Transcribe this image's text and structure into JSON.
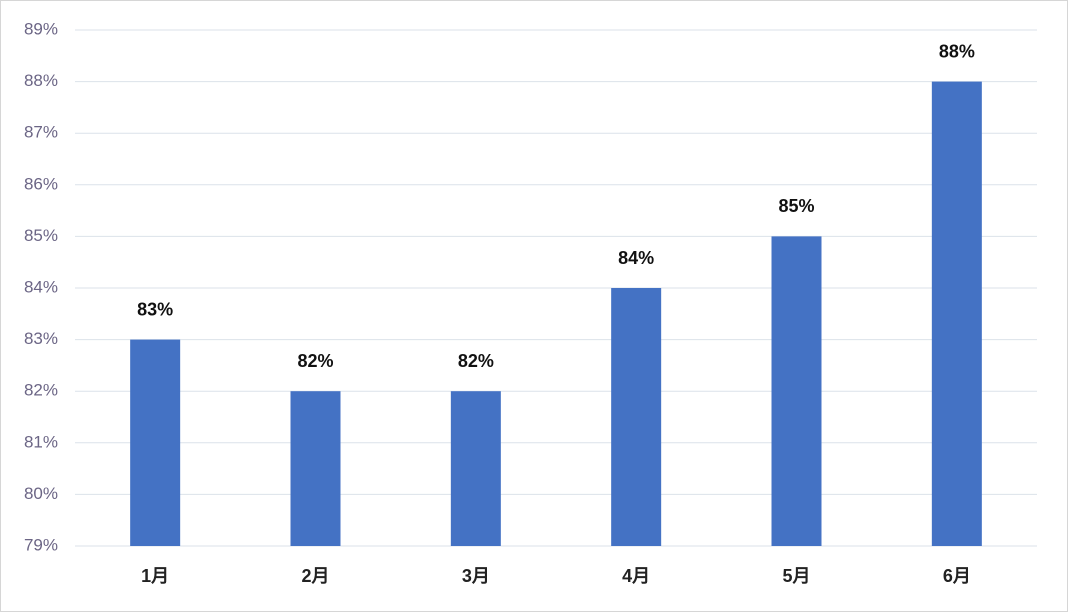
{
  "chart_data": {
    "type": "bar",
    "categories": [
      "1月",
      "2月",
      "3月",
      "4月",
      "5月",
      "6月"
    ],
    "values": [
      83,
      82,
      82,
      84,
      85,
      88
    ],
    "value_labels": [
      "83%",
      "82%",
      "82%",
      "84%",
      "85%",
      "88%"
    ],
    "color": "#4472c4",
    "ylim": [
      79,
      89
    ],
    "yticks": [
      {
        "value": 79,
        "label": "79%"
      },
      {
        "value": 80,
        "label": "80%"
      },
      {
        "value": 81,
        "label": "81%"
      },
      {
        "value": 82,
        "label": "82%"
      },
      {
        "value": 83,
        "label": "83%"
      },
      {
        "value": 84,
        "label": "84%"
      },
      {
        "value": 85,
        "label": "85%"
      },
      {
        "value": 86,
        "label": "86%"
      },
      {
        "value": 87,
        "label": "87%"
      },
      {
        "value": 88,
        "label": "88%"
      },
      {
        "value": 89,
        "label": "89%"
      }
    ],
    "grid": true
  }
}
